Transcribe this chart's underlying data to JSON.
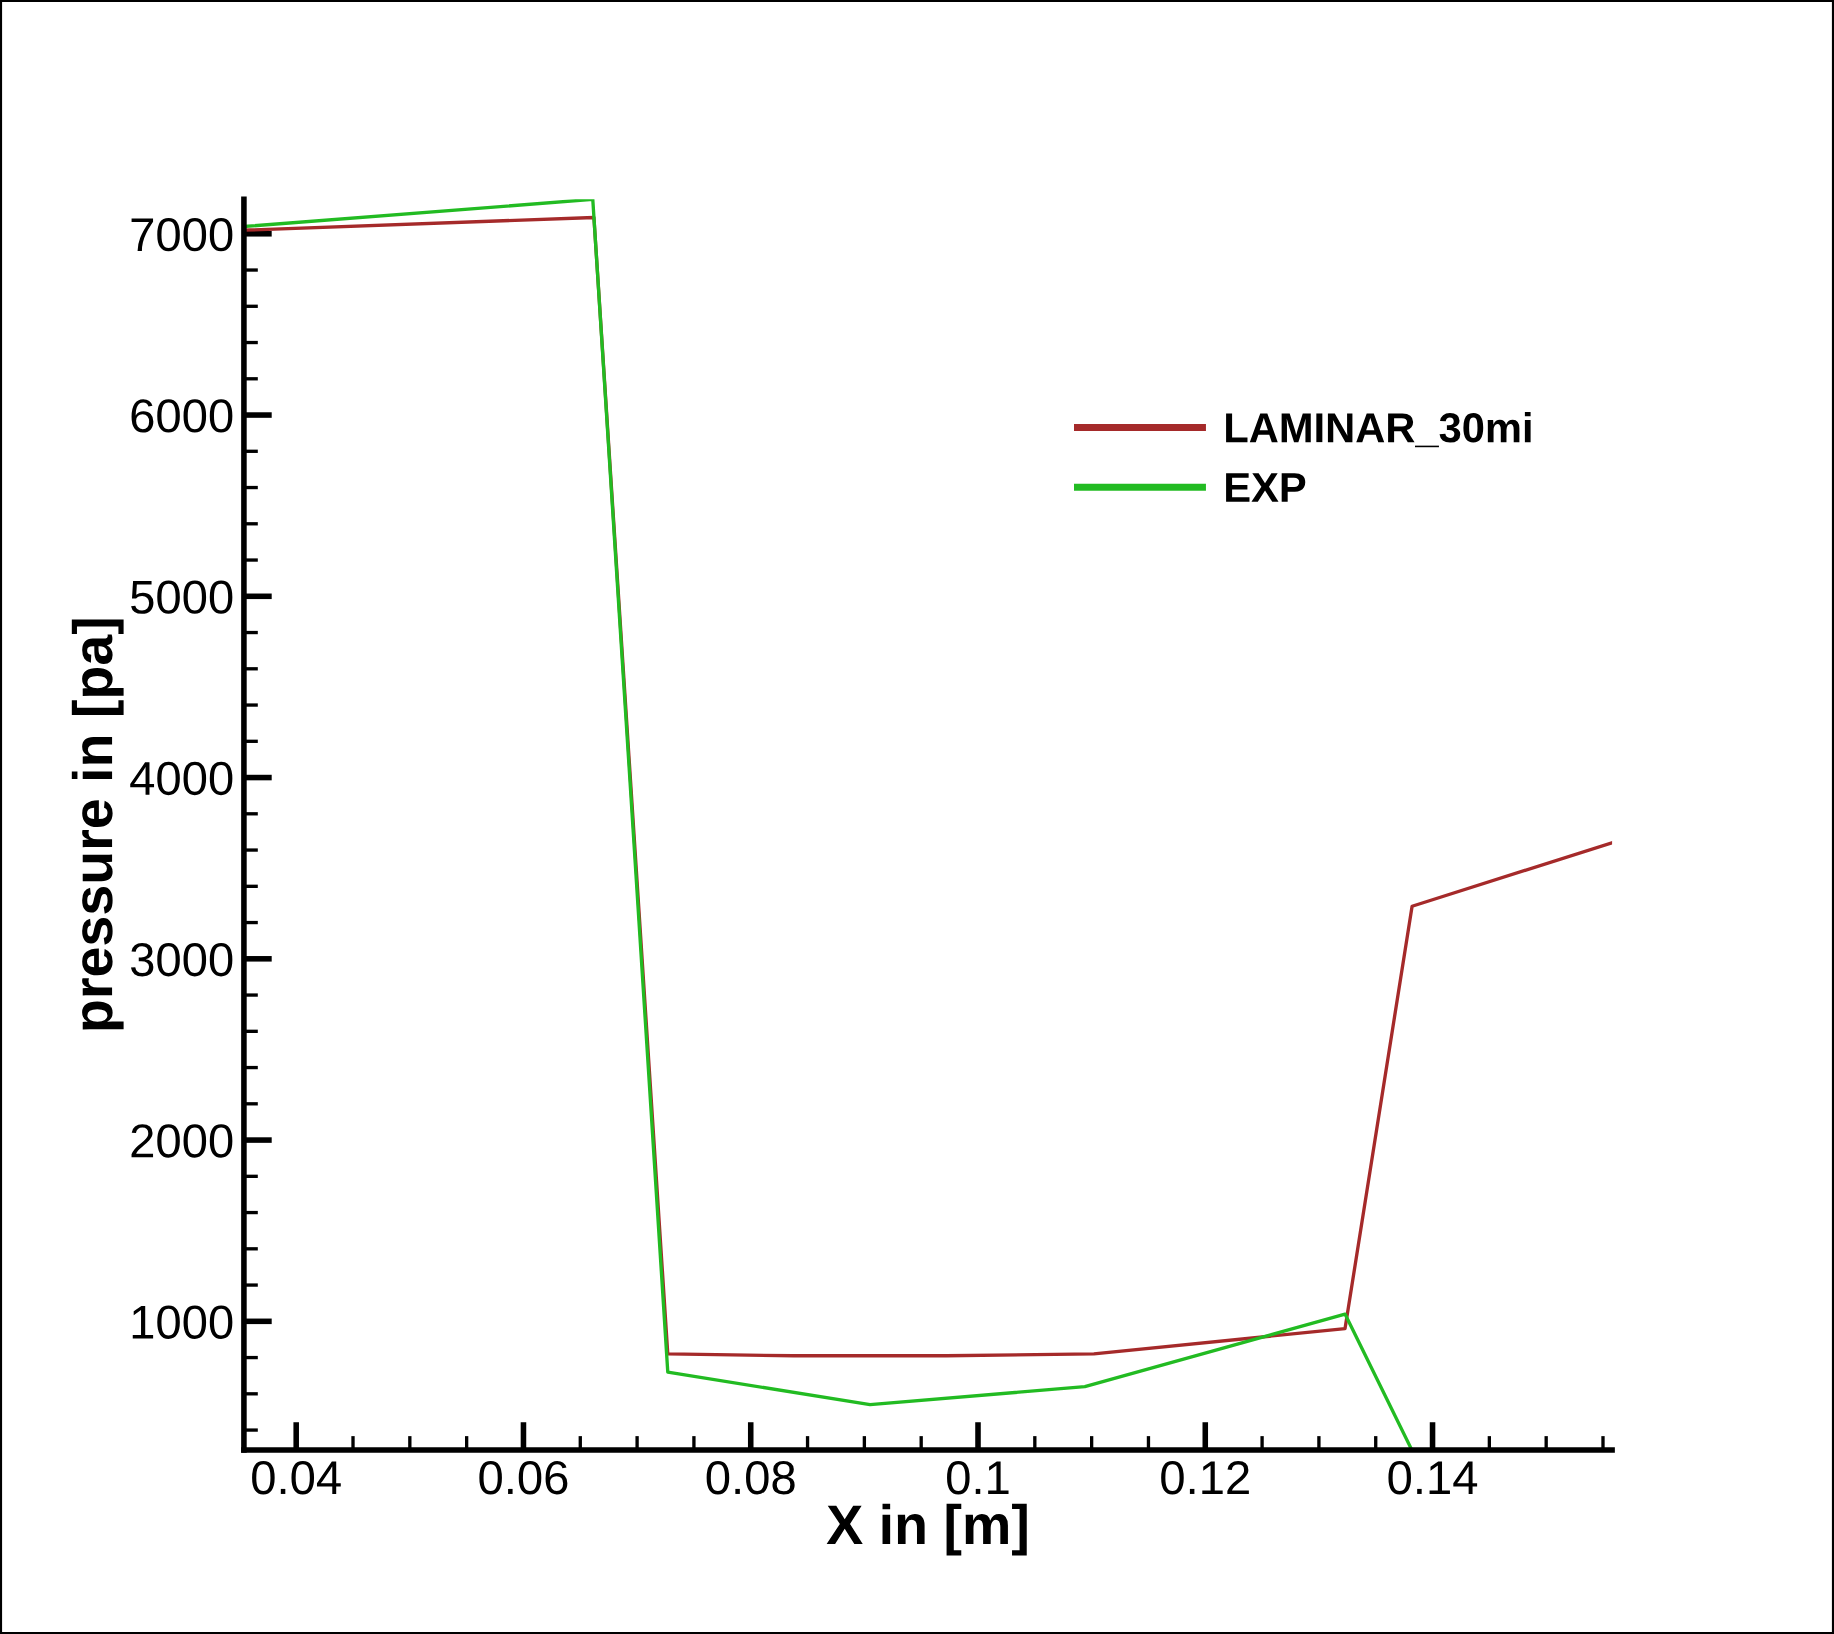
{
  "chart_data": {
    "type": "line",
    "xlabel": "X in [m]",
    "ylabel": "pressure in [pa]",
    "xlim": [
      0.0354,
      0.1558
    ],
    "ylim": [
      290,
      7190
    ],
    "xticks": [
      {
        "value": 0.04,
        "label": "0.04"
      },
      {
        "value": 0.045,
        "label": null
      },
      {
        "value": 0.05,
        "label": null
      },
      {
        "value": 0.055,
        "label": null
      },
      {
        "value": 0.06,
        "label": "0.06"
      },
      {
        "value": 0.065,
        "label": null
      },
      {
        "value": 0.07,
        "label": null
      },
      {
        "value": 0.075,
        "label": null
      },
      {
        "value": 0.08,
        "label": "0.08"
      },
      {
        "value": 0.085,
        "label": null
      },
      {
        "value": 0.09,
        "label": null
      },
      {
        "value": 0.095,
        "label": null
      },
      {
        "value": 0.1,
        "label": "0.1"
      },
      {
        "value": 0.105,
        "label": null
      },
      {
        "value": 0.11,
        "label": null
      },
      {
        "value": 0.115,
        "label": null
      },
      {
        "value": 0.12,
        "label": "0.12"
      },
      {
        "value": 0.125,
        "label": null
      },
      {
        "value": 0.13,
        "label": null
      },
      {
        "value": 0.135,
        "label": null
      },
      {
        "value": 0.14,
        "label": "0.14"
      },
      {
        "value": 0.145,
        "label": null
      },
      {
        "value": 0.15,
        "label": null
      },
      {
        "value": 0.155,
        "label": null
      }
    ],
    "yticks": [
      {
        "value": 400,
        "label": null
      },
      {
        "value": 600,
        "label": null
      },
      {
        "value": 800,
        "label": null
      },
      1000,
      {
        "value": 1200,
        "label": null
      },
      {
        "value": 1400,
        "label": null
      },
      {
        "value": 1600,
        "label": null
      },
      {
        "value": 1800,
        "label": null
      },
      2000,
      {
        "value": 2200,
        "label": null
      },
      {
        "value": 2400,
        "label": null
      },
      {
        "value": 2600,
        "label": null
      },
      {
        "value": 2800,
        "label": null
      },
      3000,
      {
        "value": 3200,
        "label": null
      },
      {
        "value": 3400,
        "label": null
      },
      {
        "value": 3600,
        "label": null
      },
      {
        "value": 3800,
        "label": null
      },
      4000,
      {
        "value": 4200,
        "label": null
      },
      {
        "value": 4400,
        "label": null
      },
      {
        "value": 4600,
        "label": null
      },
      {
        "value": 4800,
        "label": null
      },
      5000,
      {
        "value": 5200,
        "label": null
      },
      {
        "value": 5400,
        "label": null
      },
      {
        "value": 5600,
        "label": null
      },
      {
        "value": 5800,
        "label": null
      },
      6000,
      {
        "value": 6200,
        "label": null
      },
      {
        "value": 6400,
        "label": null
      },
      {
        "value": 6600,
        "label": null
      },
      {
        "value": 6800,
        "label": null
      },
      7000
    ],
    "grid": false,
    "legend": "top right",
    "marker": "none",
    "line_style": "solid",
    "series": [
      {
        "name": "LAMINAR_30mi",
        "color": "#a52a2a",
        "x": [
          0.0354,
          0.0662,
          0.0727,
          0.0838,
          0.0972,
          0.1102,
          0.1323,
          0.1382,
          0.1558
        ],
        "values": [
          7020,
          7090,
          820,
          810,
          810,
          820,
          960,
          3290,
          3640
        ]
      },
      {
        "name": "EXP",
        "color": "#22bb22",
        "x": [
          0.0354,
          0.0661,
          0.0727,
          0.0905,
          0.1094,
          0.1323,
          0.1381
        ],
        "values": [
          7040,
          7190,
          720,
          540,
          640,
          1040,
          300
        ]
      }
    ]
  }
}
